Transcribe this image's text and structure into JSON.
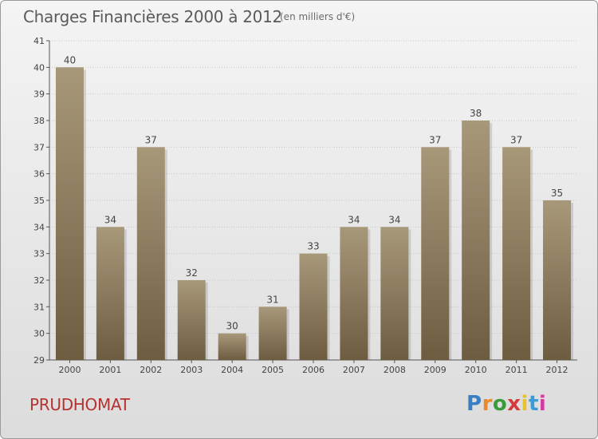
{
  "header": {
    "title": "Charges Financières 2000 à 2012",
    "subtitle": "(en milliers d'€)"
  },
  "footer": {
    "commune": "PRUDHOMAT",
    "logo": "Proxiti",
    "logo_colors": [
      "#3a7fc4",
      "#e8892b",
      "#3a9b3a",
      "#d63a3a",
      "#e8c22b",
      "#3a9bd6",
      "#d63aa0"
    ]
  },
  "colors": {
    "bar_light": "#a8987a",
    "bar_dark": "#6e5c40",
    "grid": "#c8c8c8",
    "axis": "#555555"
  },
  "chart_data": {
    "type": "bar",
    "title": "Charges Financières 2000 à 2012",
    "subtitle": "(en milliers d'€)",
    "categories": [
      "2000",
      "2001",
      "2002",
      "2003",
      "2004",
      "2005",
      "2006",
      "2007",
      "2008",
      "2009",
      "2010",
      "2011",
      "2012"
    ],
    "values": [
      40,
      34,
      37,
      32,
      30,
      31,
      33,
      34,
      34,
      37,
      38,
      37,
      35
    ],
    "ylim": [
      29,
      41
    ],
    "yticks": [
      29,
      30,
      31,
      32,
      33,
      34,
      35,
      36,
      37,
      38,
      39,
      40,
      41
    ],
    "grid": true,
    "data_labels": true
  }
}
